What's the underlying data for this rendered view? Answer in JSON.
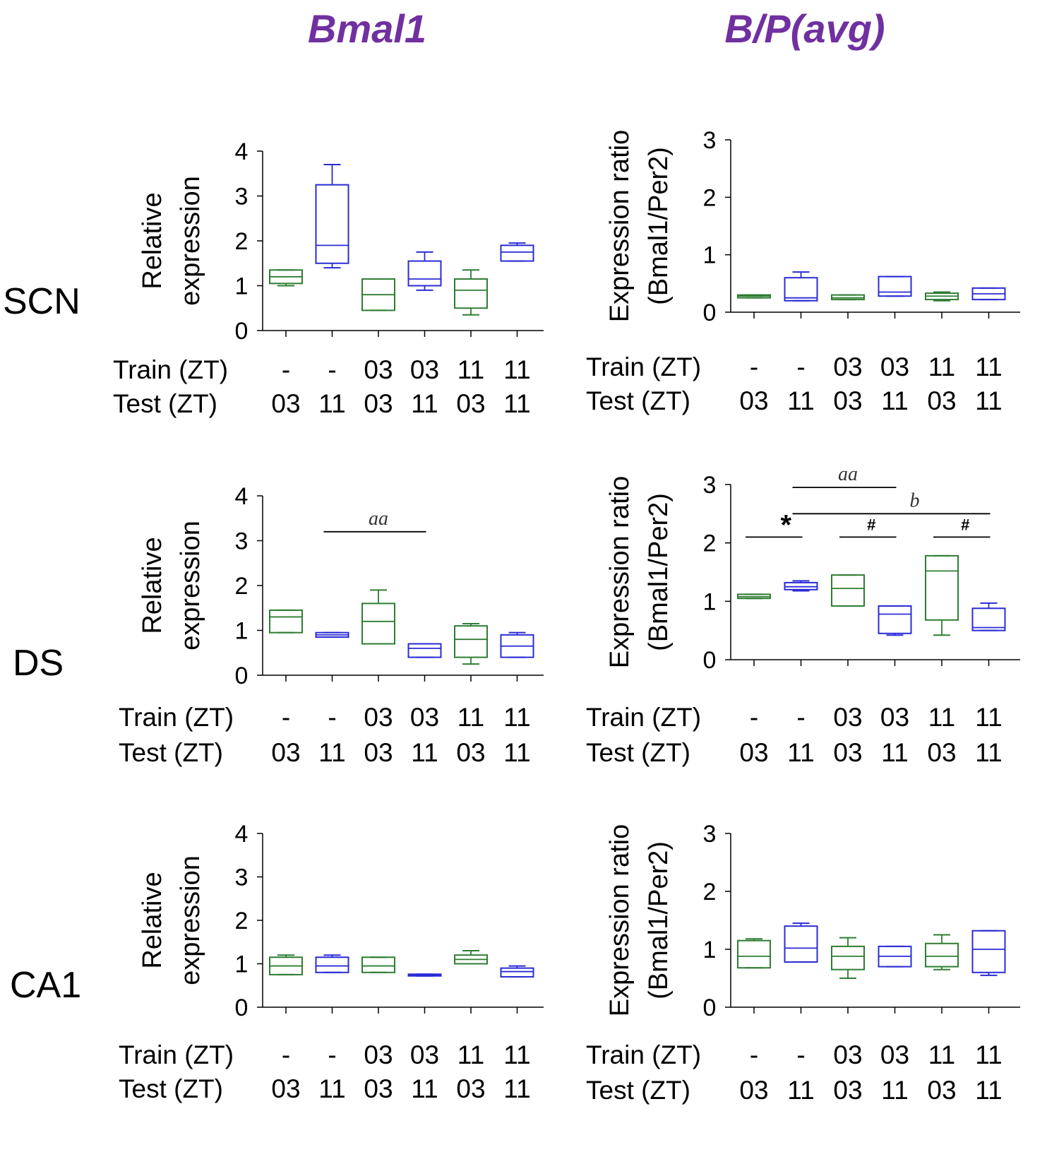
{
  "column_titles": [
    "Bmal1",
    "B/P(avg)"
  ],
  "row_labels": [
    "SCN",
    "DS",
    "CA1"
  ],
  "axis": {
    "left_ylabel_line1": "Relative",
    "left_ylabel_line2": "expression",
    "right_ylabel_line1": "Expression ratio",
    "right_ylabel_line2": "(Bmal1/Per2)",
    "train_label": "Train (ZT)",
    "test_label": "Test (ZT)",
    "train_values": [
      "-",
      "-",
      "03",
      "03",
      "11",
      "11"
    ],
    "test_values": [
      "03",
      "11",
      "03",
      "11",
      "03",
      "11"
    ]
  },
  "colors": {
    "title": "#7030a0",
    "green": "#2e7d32",
    "blue": "#2b2bd6",
    "axis": "#000000"
  },
  "chart_data": [
    {
      "type": "box",
      "panel": "SCN-Bmal1",
      "title": "Bmal1",
      "row": "SCN",
      "ylabel": "Relative expression",
      "ylim": [
        0,
        4
      ],
      "yticks": [
        0,
        1,
        2,
        3,
        4
      ],
      "categories": [
        "-/03",
        "-/11",
        "03/03",
        "03/11",
        "11/03",
        "11/11"
      ],
      "boxes": [
        {
          "min": 1.0,
          "q1": 1.05,
          "median": 1.2,
          "q3": 1.35,
          "max": 1.35
        },
        {
          "min": 1.4,
          "q1": 1.5,
          "median": 1.9,
          "q3": 3.25,
          "max": 3.7
        },
        {
          "min": 0.45,
          "q1": 0.45,
          "median": 0.8,
          "q3": 1.15,
          "max": 1.15
        },
        {
          "min": 0.9,
          "q1": 1.0,
          "median": 1.15,
          "q3": 1.55,
          "max": 1.75
        },
        {
          "min": 0.35,
          "q1": 0.5,
          "median": 0.9,
          "q3": 1.15,
          "max": 1.35
        },
        {
          "min": 1.55,
          "q1": 1.55,
          "median": 1.75,
          "q3": 1.9,
          "max": 1.95
        }
      ],
      "annotations": []
    },
    {
      "type": "box",
      "panel": "SCN-BP",
      "title": "B/P(avg)",
      "row": "SCN",
      "ylabel": "Expression ratio (Bmal1/Per2)",
      "ylim": [
        0,
        3
      ],
      "yticks": [
        0,
        1,
        2,
        3
      ],
      "categories": [
        "-/03",
        "-/11",
        "03/03",
        "03/11",
        "11/03",
        "11/11"
      ],
      "boxes": [
        {
          "min": 0.25,
          "q1": 0.25,
          "median": 0.28,
          "q3": 0.3,
          "max": 0.3
        },
        {
          "min": 0.2,
          "q1": 0.2,
          "median": 0.25,
          "q3": 0.6,
          "max": 0.7
        },
        {
          "min": 0.22,
          "q1": 0.22,
          "median": 0.25,
          "q3": 0.3,
          "max": 0.3
        },
        {
          "min": 0.28,
          "q1": 0.28,
          "median": 0.35,
          "q3": 0.62,
          "max": 0.62
        },
        {
          "min": 0.2,
          "q1": 0.22,
          "median": 0.28,
          "q3": 0.33,
          "max": 0.35
        },
        {
          "min": 0.22,
          "q1": 0.22,
          "median": 0.32,
          "q3": 0.42,
          "max": 0.42
        }
      ],
      "annotations": []
    },
    {
      "type": "box",
      "panel": "DS-Bmal1",
      "title": "Bmal1",
      "row": "DS",
      "ylabel": "Relative expression",
      "ylim": [
        0,
        4
      ],
      "yticks": [
        0,
        1,
        2,
        3,
        4
      ],
      "categories": [
        "-/03",
        "-/11",
        "03/03",
        "03/11",
        "11/03",
        "11/11"
      ],
      "boxes": [
        {
          "min": 0.95,
          "q1": 0.95,
          "median": 1.3,
          "q3": 1.45,
          "max": 1.45
        },
        {
          "min": 0.85,
          "q1": 0.85,
          "median": 0.9,
          "q3": 0.95,
          "max": 0.95
        },
        {
          "min": 0.7,
          "q1": 0.7,
          "median": 1.2,
          "q3": 1.6,
          "max": 1.9
        },
        {
          "min": 0.4,
          "q1": 0.4,
          "median": 0.6,
          "q3": 0.7,
          "max": 0.7
        },
        {
          "min": 0.25,
          "q1": 0.4,
          "median": 0.8,
          "q3": 1.1,
          "max": 1.15
        },
        {
          "min": 0.4,
          "q1": 0.4,
          "median": 0.65,
          "q3": 0.9,
          "max": 0.95
        }
      ],
      "annotations": [
        {
          "label": "aa",
          "from": 1,
          "to": 3,
          "y": 3.2
        }
      ]
    },
    {
      "type": "box",
      "panel": "DS-BP",
      "title": "B/P(avg)",
      "row": "DS",
      "ylabel": "Expression ratio (Bmal1/Per2)",
      "ylim": [
        0,
        3
      ],
      "yticks": [
        0,
        1,
        2,
        3
      ],
      "categories": [
        "-/03",
        "-/11",
        "03/03",
        "03/11",
        "11/03",
        "11/11"
      ],
      "boxes": [
        {
          "min": 1.05,
          "q1": 1.05,
          "median": 1.08,
          "q3": 1.12,
          "max": 1.12
        },
        {
          "min": 1.18,
          "q1": 1.2,
          "median": 1.25,
          "q3": 1.32,
          "max": 1.35
        },
        {
          "min": 0.92,
          "q1": 0.92,
          "median": 1.22,
          "q3": 1.45,
          "max": 1.45
        },
        {
          "min": 0.42,
          "q1": 0.45,
          "median": 0.78,
          "q3": 0.92,
          "max": 0.92
        },
        {
          "min": 0.42,
          "q1": 0.68,
          "median": 1.52,
          "q3": 1.78,
          "max": 1.78
        },
        {
          "min": 0.5,
          "q1": 0.5,
          "median": 0.55,
          "q3": 0.88,
          "max": 0.97
        }
      ],
      "annotations": [
        {
          "label": "*",
          "from": 0,
          "to": 1,
          "y": 2.1
        },
        {
          "label": "aa",
          "from": 1,
          "to": 3,
          "y": 2.95
        },
        {
          "label": "b",
          "from": 1,
          "to": 5,
          "y": 2.5
        },
        {
          "label": "#",
          "from": 2,
          "to": 3,
          "y": 2.1
        },
        {
          "label": "#",
          "from": 4,
          "to": 5,
          "y": 2.1
        }
      ]
    },
    {
      "type": "box",
      "panel": "CA1-Bmal1",
      "title": "Bmal1",
      "row": "CA1",
      "ylabel": "Relative expression",
      "ylim": [
        0,
        4
      ],
      "yticks": [
        0,
        1,
        2,
        3,
        4
      ],
      "categories": [
        "-/03",
        "-/11",
        "03/03",
        "03/11",
        "11/03",
        "11/11"
      ],
      "boxes": [
        {
          "min": 0.75,
          "q1": 0.75,
          "median": 0.95,
          "q3": 1.15,
          "max": 1.2
        },
        {
          "min": 0.8,
          "q1": 0.8,
          "median": 0.95,
          "q3": 1.15,
          "max": 1.2
        },
        {
          "min": 0.8,
          "q1": 0.8,
          "median": 0.95,
          "q3": 1.15,
          "max": 1.15
        },
        {
          "min": 0.72,
          "q1": 0.72,
          "median": 0.74,
          "q3": 0.76,
          "max": 0.76
        },
        {
          "min": 1.0,
          "q1": 1.0,
          "median": 1.1,
          "q3": 1.2,
          "max": 1.3
        },
        {
          "min": 0.7,
          "q1": 0.7,
          "median": 0.82,
          "q3": 0.9,
          "max": 0.95
        }
      ],
      "annotations": []
    },
    {
      "type": "box",
      "panel": "CA1-BP",
      "title": "B/P(avg)",
      "row": "CA1",
      "ylabel": "Expression ratio (Bmal1/Per2)",
      "ylim": [
        0,
        3
      ],
      "yticks": [
        0,
        1,
        2,
        3
      ],
      "categories": [
        "-/03",
        "-/11",
        "03/03",
        "03/11",
        "11/03",
        "11/11"
      ],
      "boxes": [
        {
          "min": 0.68,
          "q1": 0.68,
          "median": 0.88,
          "q3": 1.15,
          "max": 1.18
        },
        {
          "min": 0.78,
          "q1": 0.78,
          "median": 1.02,
          "q3": 1.4,
          "max": 1.45
        },
        {
          "min": 0.5,
          "q1": 0.65,
          "median": 0.88,
          "q3": 1.05,
          "max": 1.2
        },
        {
          "min": 0.7,
          "q1": 0.7,
          "median": 0.88,
          "q3": 1.05,
          "max": 1.05
        },
        {
          "min": 0.65,
          "q1": 0.7,
          "median": 0.88,
          "q3": 1.1,
          "max": 1.25
        },
        {
          "min": 0.55,
          "q1": 0.6,
          "median": 1.0,
          "q3": 1.32,
          "max": 1.32
        }
      ],
      "annotations": []
    }
  ]
}
